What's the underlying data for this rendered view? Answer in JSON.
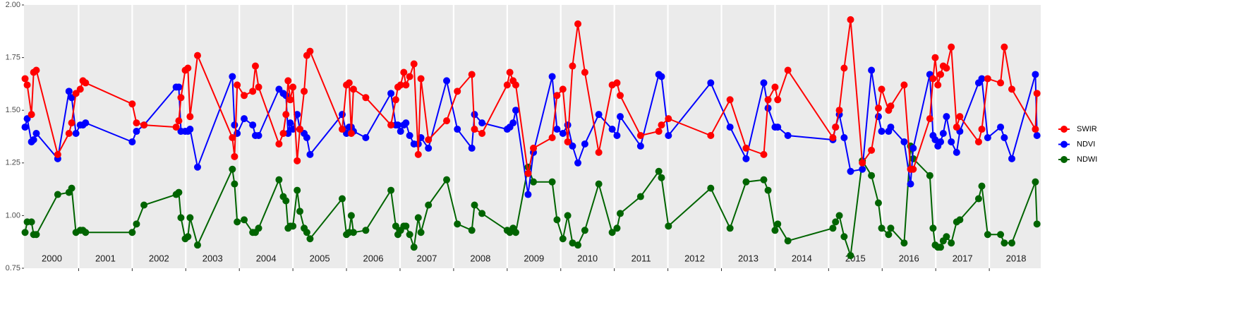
{
  "chart_data": {
    "type": "line",
    "x": [
      2000.0,
      2000.04,
      2000.12,
      2000.16,
      2000.21,
      2000.61,
      2000.82,
      2000.87,
      2000.95,
      2001.03,
      2001.08,
      2001.13,
      2002.0,
      2002.08,
      2002.22,
      2002.82,
      2002.87,
      2002.91,
      2002.99,
      2003.04,
      2003.08,
      2003.22,
      2003.87,
      2003.91,
      2003.96,
      2004.09,
      2004.25,
      2004.3,
      2004.36,
      2004.74,
      2004.82,
      2004.87,
      2004.91,
      2004.95,
      2005.0,
      2005.08,
      2005.13,
      2005.21,
      2005.26,
      2005.32,
      2005.92,
      2006.0,
      2006.05,
      2006.09,
      2006.13,
      2006.36,
      2006.83,
      2006.92,
      2006.96,
      2007.01,
      2007.07,
      2007.11,
      2007.18,
      2007.26,
      2007.34,
      2007.39,
      2007.53,
      2007.87,
      2008.07,
      2008.34,
      2008.39,
      2008.53,
      2009.0,
      2009.05,
      2009.11,
      2009.16,
      2009.39,
      2009.49,
      2009.84,
      2009.93,
      2010.04,
      2010.13,
      2010.22,
      2010.32,
      2010.45,
      2010.71,
      2010.96,
      2011.05,
      2011.11,
      2011.49,
      2011.83,
      2011.88,
      2012.01,
      2012.8,
      2013.16,
      2013.46,
      2013.79,
      2013.87,
      2014.0,
      2014.05,
      2014.24,
      2015.08,
      2015.13,
      2015.2,
      2015.29,
      2015.41,
      2015.63,
      2015.8,
      2015.93,
      2015.99,
      2016.12,
      2016.16,
      2016.41,
      2016.53,
      2016.58,
      2016.89,
      2016.95,
      2016.99,
      2017.04,
      2017.09,
      2017.14,
      2017.2,
      2017.29,
      2017.39,
      2017.45,
      2017.8,
      2017.86,
      2017.97,
      2018.21,
      2018.28,
      2018.42,
      2018.86,
      2018.89
    ],
    "series": [
      {
        "name": "SWIR",
        "color": "#ff0000",
        "values": [
          1.65,
          1.62,
          1.48,
          1.68,
          1.69,
          1.29,
          1.39,
          1.44,
          1.58,
          1.6,
          1.64,
          1.63,
          1.53,
          1.44,
          1.43,
          1.42,
          1.45,
          1.56,
          1.69,
          1.7,
          1.47,
          1.76,
          1.37,
          1.28,
          1.62,
          1.57,
          1.59,
          1.71,
          1.61,
          1.34,
          1.39,
          1.48,
          1.64,
          1.55,
          1.61,
          1.26,
          1.41,
          1.59,
          1.76,
          1.78,
          1.41,
          1.62,
          1.63,
          1.39,
          1.6,
          1.56,
          1.43,
          1.55,
          1.61,
          1.62,
          1.68,
          1.62,
          1.66,
          1.72,
          1.29,
          1.65,
          1.36,
          1.45,
          1.59,
          1.67,
          1.41,
          1.39,
          1.62,
          1.68,
          1.64,
          1.62,
          1.2,
          1.32,
          1.37,
          1.57,
          1.6,
          1.35,
          1.71,
          1.91,
          1.68,
          1.3,
          1.62,
          1.63,
          1.57,
          1.38,
          1.4,
          1.43,
          1.46,
          1.38,
          1.55,
          1.32,
          1.29,
          1.55,
          1.61,
          1.55,
          1.69,
          1.37,
          1.42,
          1.5,
          1.7,
          1.93,
          1.25,
          1.31,
          1.51,
          1.6,
          1.5,
          1.52,
          1.62,
          1.22,
          1.22,
          1.46,
          1.65,
          1.75,
          1.62,
          1.67,
          1.71,
          1.7,
          1.8,
          1.42,
          1.47,
          1.35,
          1.41,
          1.65,
          1.63,
          1.8,
          1.6,
          1.41,
          1.58
        ]
      },
      {
        "name": "NDVI",
        "color": "#0000ff",
        "values": [
          1.42,
          1.46,
          1.35,
          1.36,
          1.39,
          1.27,
          1.59,
          1.56,
          1.39,
          1.43,
          1.43,
          1.44,
          1.35,
          1.4,
          1.43,
          1.61,
          1.61,
          1.4,
          1.4,
          1.4,
          1.41,
          1.23,
          1.66,
          1.43,
          1.39,
          1.46,
          1.43,
          1.38,
          1.38,
          1.6,
          1.58,
          1.57,
          1.39,
          1.44,
          1.41,
          1.48,
          1.41,
          1.39,
          1.37,
          1.29,
          1.48,
          1.39,
          1.42,
          1.42,
          1.4,
          1.37,
          1.58,
          1.43,
          1.43,
          1.4,
          1.43,
          1.44,
          1.38,
          1.34,
          1.34,
          1.37,
          1.32,
          1.64,
          1.41,
          1.32,
          1.48,
          1.44,
          1.41,
          1.42,
          1.44,
          1.5,
          1.1,
          1.3,
          1.66,
          1.41,
          1.39,
          1.43,
          1.33,
          1.25,
          1.34,
          1.48,
          1.41,
          1.38,
          1.47,
          1.33,
          1.67,
          1.66,
          1.38,
          1.63,
          1.42,
          1.27,
          1.63,
          1.51,
          1.42,
          1.42,
          1.38,
          1.36,
          1.42,
          1.48,
          1.37,
          1.21,
          1.22,
          1.69,
          1.47,
          1.4,
          1.4,
          1.42,
          1.35,
          1.15,
          1.32,
          1.67,
          1.38,
          1.36,
          1.33,
          1.35,
          1.39,
          1.47,
          1.35,
          1.3,
          1.4,
          1.63,
          1.65,
          1.37,
          1.42,
          1.37,
          1.27,
          1.67,
          1.38
        ]
      },
      {
        "name": "NDWI",
        "color": "#006400",
        "values": [
          0.92,
          0.97,
          0.97,
          0.91,
          0.91,
          1.1,
          1.11,
          1.13,
          0.92,
          0.93,
          0.93,
          0.92,
          0.92,
          0.96,
          1.05,
          1.1,
          1.11,
          0.99,
          0.89,
          0.9,
          0.99,
          0.86,
          1.22,
          1.15,
          0.97,
          0.98,
          0.92,
          0.92,
          0.94,
          1.17,
          1.09,
          1.07,
          0.94,
          0.95,
          0.95,
          1.12,
          1.02,
          0.94,
          0.92,
          0.89,
          1.08,
          0.91,
          0.92,
          1.0,
          0.92,
          0.93,
          1.12,
          0.95,
          0.91,
          0.93,
          0.95,
          0.95,
          0.91,
          0.85,
          0.99,
          0.92,
          1.05,
          1.17,
          0.96,
          0.93,
          1.05,
          1.01,
          0.93,
          0.92,
          0.94,
          0.92,
          1.23,
          1.16,
          1.16,
          0.98,
          0.89,
          1.0,
          0.87,
          0.86,
          0.93,
          1.15,
          0.92,
          0.94,
          1.01,
          1.09,
          1.21,
          1.18,
          0.95,
          1.13,
          0.94,
          1.16,
          1.17,
          1.12,
          0.93,
          0.96,
          0.88,
          0.94,
          0.97,
          1.0,
          0.9,
          0.81,
          1.26,
          1.19,
          1.06,
          0.94,
          0.91,
          0.94,
          0.87,
          1.33,
          1.27,
          1.19,
          0.94,
          0.86,
          0.85,
          0.85,
          0.88,
          0.9,
          0.87,
          0.97,
          0.98,
          1.08,
          1.14,
          0.91,
          0.91,
          0.87,
          0.87,
          1.16,
          0.96
        ]
      }
    ],
    "xlim": [
      1999.98,
      2018.96
    ],
    "xticks": [
      2001,
      2002,
      2003,
      2004,
      2005,
      2006,
      2007,
      2008,
      2009,
      2010,
      2011,
      2012,
      2013,
      2014,
      2015,
      2016,
      2017,
      2018
    ],
    "annotations": [
      {
        "x": 2000.5,
        "label": "2000"
      },
      {
        "x": 2001.5,
        "label": "2001"
      },
      {
        "x": 2002.5,
        "label": "2002"
      },
      {
        "x": 2003.5,
        "label": "2003"
      },
      {
        "x": 2004.5,
        "label": "2004"
      },
      {
        "x": 2005.5,
        "label": "2005"
      },
      {
        "x": 2006.5,
        "label": "2006"
      },
      {
        "x": 2007.5,
        "label": "2007"
      },
      {
        "x": 2008.5,
        "label": "2008"
      },
      {
        "x": 2009.5,
        "label": "2009"
      },
      {
        "x": 2010.5,
        "label": "2010"
      },
      {
        "x": 2011.5,
        "label": "2011"
      },
      {
        "x": 2012.5,
        "label": "2012"
      },
      {
        "x": 2013.5,
        "label": "2013"
      },
      {
        "x": 2014.5,
        "label": "2014"
      },
      {
        "x": 2015.5,
        "label": "2015"
      },
      {
        "x": 2016.5,
        "label": "2016"
      },
      {
        "x": 2017.5,
        "label": "2017"
      },
      {
        "x": 2018.5,
        "label": "2018"
      }
    ],
    "ylim": [
      0.75,
      2.0
    ],
    "yticks": [
      0.75,
      {
        "value": 1,
        "label": "1.00"
      },
      1.25,
      {
        "value": 1.5,
        "label": "1.50"
      },
      1.75,
      {
        "value": 2,
        "label": "2.00"
      }
    ],
    "grid": "x",
    "legend": "right"
  }
}
